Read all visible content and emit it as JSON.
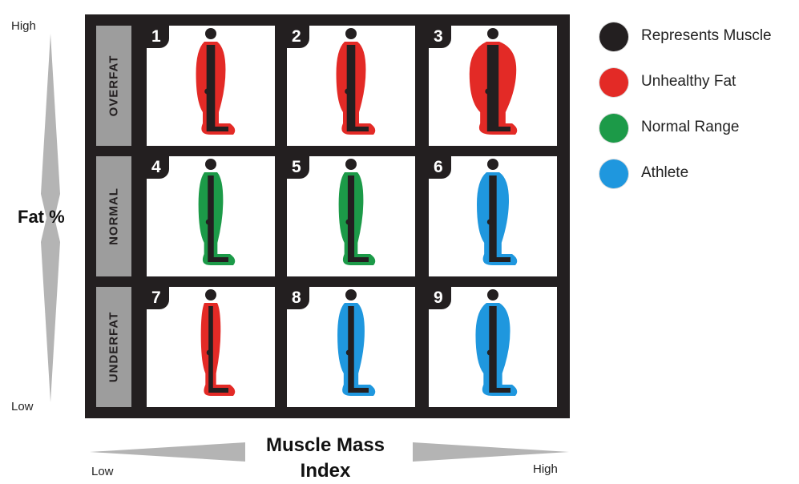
{
  "vertical_axis": {
    "high": "High",
    "label": "Fat %",
    "low": "Low"
  },
  "horizontal_axis": {
    "label_line1": "Muscle Mass",
    "label_line2": "Index",
    "low": "Low",
    "high": "High"
  },
  "rows": [
    "OVERFAT",
    "NORMAL",
    "UNDERFAT"
  ],
  "cells": [
    {
      "number": "1",
      "fat": "red"
    },
    {
      "number": "2",
      "fat": "red"
    },
    {
      "number": "3",
      "fat": "red"
    },
    {
      "number": "4",
      "fat": "green"
    },
    {
      "number": "5",
      "fat": "green"
    },
    {
      "number": "6",
      "fat": "blue"
    },
    {
      "number": "7",
      "fat": "red"
    },
    {
      "number": "8",
      "fat": "blue"
    },
    {
      "number": "9",
      "fat": "blue"
    }
  ],
  "legend": [
    {
      "label": "Represents Muscle",
      "color": "#231f20"
    },
    {
      "label": "Unhealthy Fat",
      "color": "#e32a26"
    },
    {
      "label": "Normal Range",
      "color": "#1c9a48"
    },
    {
      "label": "Athlete",
      "color": "#1f97de"
    }
  ],
  "colors": {
    "red": "#e32a26",
    "green": "#1c9a48",
    "blue": "#1f97de",
    "muscle": "#231f20",
    "frame": "#231f20",
    "row_label_bg": "#9d9d9d",
    "arrow": "#b4b4b4"
  }
}
